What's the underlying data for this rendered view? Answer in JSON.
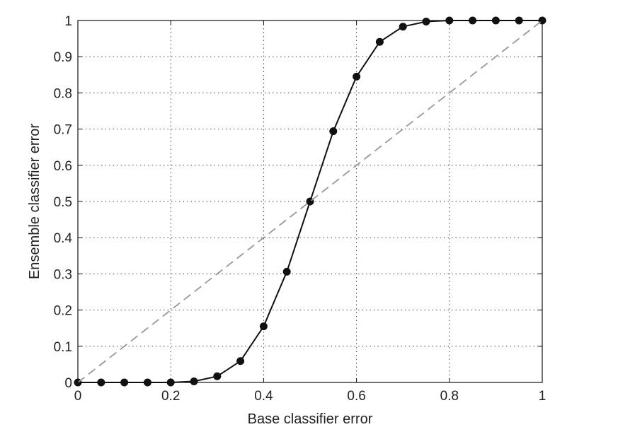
{
  "chart_data": {
    "type": "line",
    "title": "",
    "xlabel": "Base classifier error",
    "ylabel": "Ensemble classifier error",
    "xlim": [
      0,
      1
    ],
    "ylim": [
      0,
      1
    ],
    "xticks": [
      0,
      0.2,
      0.4,
      0.6,
      0.8,
      1
    ],
    "xtick_labels": [
      "0",
      "0.2",
      "0.4",
      "0.6",
      "0.8",
      "1"
    ],
    "yticks": [
      0,
      0.1,
      0.2,
      0.3,
      0.4,
      0.5,
      0.6,
      0.7,
      0.8,
      0.9,
      1
    ],
    "ytick_labels": [
      "0",
      "0.1",
      "0.2",
      "0.3",
      "0.4",
      "0.5",
      "0.6",
      "0.7",
      "0.8",
      "0.9",
      "1"
    ],
    "grid": true,
    "legend": "none",
    "series": [
      {
        "style": "solid-with-markers",
        "color": "#111111",
        "x": [
          0,
          0.05,
          0.1,
          0.15,
          0.2,
          0.25,
          0.3,
          0.35,
          0.4,
          0.45,
          0.5,
          0.55,
          0.6,
          0.65,
          0.7,
          0.75,
          0.8,
          0.85,
          0.9,
          0.95,
          1
        ],
        "y": [
          0,
          0,
          0,
          0,
          0,
          0.003,
          0.017,
          0.059,
          0.155,
          0.306,
          0.5,
          0.694,
          0.845,
          0.941,
          0.983,
          0.997,
          1,
          1,
          1,
          1,
          1
        ]
      },
      {
        "style": "dashed",
        "color": "#999999",
        "x": [
          0,
          1
        ],
        "y": [
          0,
          1
        ]
      }
    ]
  }
}
